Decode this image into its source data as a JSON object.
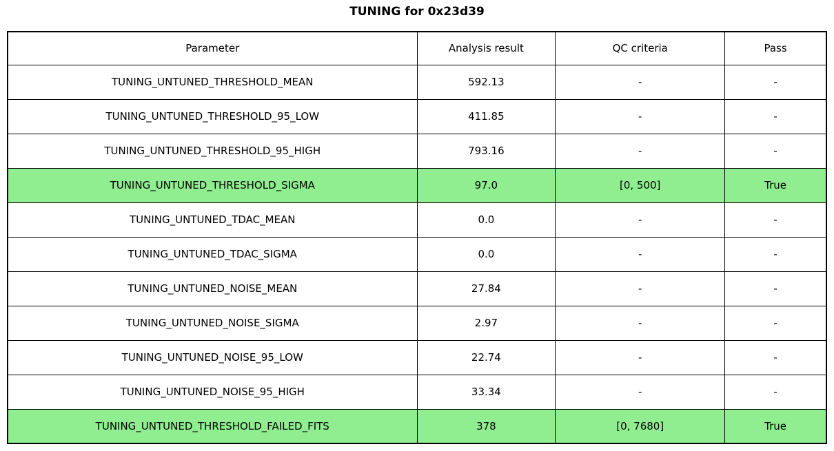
{
  "title": "TUNING for 0x23d39",
  "colors": {
    "highlight_green": "#90EE90",
    "border": "#000000",
    "background": "#FFFFFF",
    "text": "#000000"
  },
  "table": {
    "headers": [
      "Parameter",
      "Analysis result",
      "QC criteria",
      "Pass"
    ],
    "rows": [
      {
        "parameter": "TUNING_UNTUNED_THRESHOLD_MEAN",
        "analysis_result": "592.13",
        "qc_criteria": "-",
        "pass": "-",
        "highlighted": false
      },
      {
        "parameter": "TUNING_UNTUNED_THRESHOLD_95_LOW",
        "analysis_result": "411.85",
        "qc_criteria": "-",
        "pass": "-",
        "highlighted": false
      },
      {
        "parameter": "TUNING_UNTUNED_THRESHOLD_95_HIGH",
        "analysis_result": "793.16",
        "qc_criteria": "-",
        "pass": "-",
        "highlighted": false
      },
      {
        "parameter": "TUNING_UNTUNED_THRESHOLD_SIGMA",
        "analysis_result": "97.0",
        "qc_criteria": "[0, 500]",
        "pass": "True",
        "highlighted": true
      },
      {
        "parameter": "TUNING_UNTUNED_TDAC_MEAN",
        "analysis_result": "0.0",
        "qc_criteria": "-",
        "pass": "-",
        "highlighted": false
      },
      {
        "parameter": "TUNING_UNTUNED_TDAC_SIGMA",
        "analysis_result": "0.0",
        "qc_criteria": "-",
        "pass": "-",
        "highlighted": false
      },
      {
        "parameter": "TUNING_UNTUNED_NOISE_MEAN",
        "analysis_result": "27.84",
        "qc_criteria": "-",
        "pass": "-",
        "highlighted": false
      },
      {
        "parameter": "TUNING_UNTUNED_NOISE_SIGMA",
        "analysis_result": "2.97",
        "qc_criteria": "-",
        "pass": "-",
        "highlighted": false
      },
      {
        "parameter": "TUNING_UNTUNED_NOISE_95_LOW",
        "analysis_result": "22.74",
        "qc_criteria": "-",
        "pass": "-",
        "highlighted": false
      },
      {
        "parameter": "TUNING_UNTUNED_NOISE_95_HIGH",
        "analysis_result": "33.34",
        "qc_criteria": "-",
        "pass": "-",
        "highlighted": false
      },
      {
        "parameter": "TUNING_UNTUNED_THRESHOLD_FAILED_FITS",
        "analysis_result": "378",
        "qc_criteria": "[0, 7680]",
        "pass": "True",
        "highlighted": true
      }
    ]
  },
  "chart_data": {
    "type": "table",
    "title": "TUNING for 0x23d39",
    "columns": [
      "Parameter",
      "Analysis result",
      "QC criteria",
      "Pass"
    ],
    "rows": [
      [
        "TUNING_UNTUNED_THRESHOLD_MEAN",
        "592.13",
        "-",
        "-"
      ],
      [
        "TUNING_UNTUNED_THRESHOLD_95_LOW",
        "411.85",
        "-",
        "-"
      ],
      [
        "TUNING_UNTUNED_THRESHOLD_95_HIGH",
        "793.16",
        "-",
        "-"
      ],
      [
        "TUNING_UNTUNED_THRESHOLD_SIGMA",
        "97.0",
        "[0, 500]",
        "True"
      ],
      [
        "TUNING_UNTUNED_TDAC_MEAN",
        "0.0",
        "-",
        "-"
      ],
      [
        "TUNING_UNTUNED_TDAC_SIGMA",
        "0.0",
        "-",
        "-"
      ],
      [
        "TUNING_UNTUNED_NOISE_MEAN",
        "27.84",
        "-",
        "-"
      ],
      [
        "TUNING_UNTUNED_NOISE_SIGMA",
        "2.97",
        "-",
        "-"
      ],
      [
        "TUNING_UNTUNED_NOISE_95_LOW",
        "22.74",
        "-",
        "-"
      ],
      [
        "TUNING_UNTUNED_NOISE_95_HIGH",
        "33.34",
        "-",
        "-"
      ],
      [
        "TUNING_UNTUNED_THRESHOLD_FAILED_FITS",
        "378",
        "[0, 7680]",
        "True"
      ]
    ],
    "highlighted_row_indices": [
      3,
      10
    ],
    "highlight_color": "#90EE90",
    "layout_hints": {
      "text_align": "center",
      "grid": "all-borders",
      "title_position": "top-center"
    }
  }
}
